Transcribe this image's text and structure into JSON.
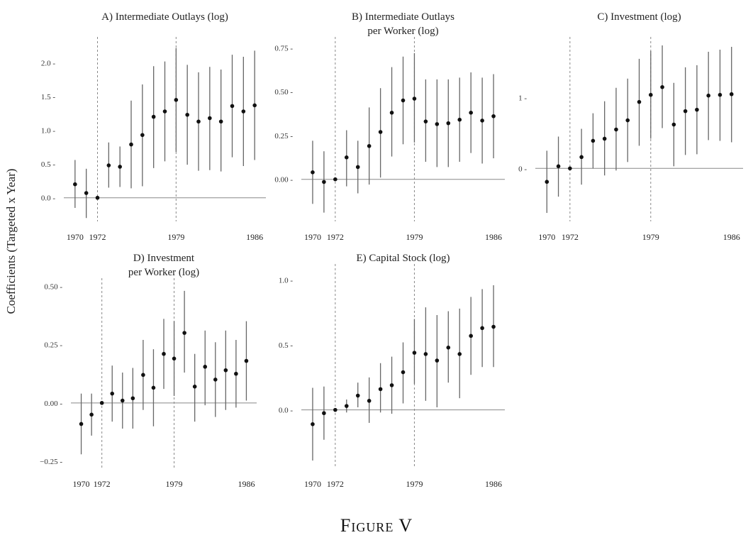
{
  "figure_caption": "Figure V",
  "y_axis_label": "Coefficients (Targeted x Year)",
  "colors": {
    "point": "#111111",
    "ci": "#666666",
    "ref_line": "#888888"
  },
  "chart_data": [
    {
      "type": "scatter",
      "title": "A) Intermediate Outlays (log)",
      "x_ticks": [
        1970,
        1972,
        1979,
        1986
      ],
      "y_ticks": [
        0.0,
        0.5,
        1.0,
        1.5,
        2.0
      ],
      "y_tick_labels": [
        "0.0",
        "0.5",
        "1.0",
        "1.5",
        "2.0"
      ],
      "xlim": [
        1969,
        1987
      ],
      "ylim": [
        -0.35,
        2.3
      ],
      "vlines": [
        1972,
        1979
      ],
      "x": [
        1970,
        1971,
        1972,
        1973,
        1974,
        1975,
        1976,
        1977,
        1978,
        1979,
        1980,
        1981,
        1982,
        1983,
        1984,
        1985,
        1986
      ],
      "estimate": [
        0.2,
        0.07,
        0.0,
        0.48,
        0.46,
        0.79,
        0.93,
        1.2,
        1.28,
        1.45,
        1.23,
        1.13,
        1.18,
        1.13,
        1.36,
        1.28,
        1.37
      ],
      "ci_low": [
        -0.15,
        -0.3,
        0.0,
        0.15,
        0.16,
        0.14,
        0.17,
        0.44,
        0.54,
        0.68,
        0.49,
        0.4,
        0.41,
        0.39,
        0.6,
        0.47,
        0.56
      ],
      "ci_high": [
        0.56,
        0.43,
        0.0,
        0.82,
        0.76,
        1.44,
        1.68,
        1.95,
        2.02,
        2.22,
        1.97,
        1.86,
        1.94,
        1.9,
        2.12,
        2.09,
        2.18
      ]
    },
    {
      "type": "scatter",
      "title": "B) Intermediate Outlays\nper Worker (log)",
      "x_ticks": [
        1970,
        1972,
        1979,
        1986
      ],
      "y_ticks": [
        0.0,
        0.25,
        0.5,
        0.75
      ],
      "y_tick_labels": [
        "0.00",
        "0.25",
        "0.50",
        "0.75"
      ],
      "xlim": [
        1969,
        1987
      ],
      "ylim": [
        -0.24,
        0.78
      ],
      "vlines": [
        1972,
        1979
      ],
      "x": [
        1970,
        1971,
        1972,
        1973,
        1974,
        1975,
        1976,
        1977,
        1978,
        1979,
        1980,
        1981,
        1982,
        1983,
        1984,
        1985,
        1986
      ],
      "estimate": [
        0.04,
        -0.015,
        0.0,
        0.125,
        0.07,
        0.19,
        0.27,
        0.38,
        0.45,
        0.46,
        0.33,
        0.315,
        0.32,
        0.34,
        0.38,
        0.335,
        0.36
      ],
      "ci_low": [
        -0.14,
        -0.19,
        0.0,
        -0.04,
        -0.08,
        -0.03,
        0.01,
        0.13,
        0.2,
        0.21,
        0.1,
        0.07,
        0.07,
        0.1,
        0.15,
        0.09,
        0.12
      ],
      "ci_high": [
        0.22,
        0.16,
        0.0,
        0.28,
        0.22,
        0.41,
        0.52,
        0.64,
        0.7,
        0.72,
        0.57,
        0.57,
        0.57,
        0.58,
        0.61,
        0.58,
        0.6
      ]
    },
    {
      "type": "scatter",
      "title": "C) Investment (log)",
      "x_ticks": [
        1970,
        1972,
        1979,
        1986
      ],
      "y_ticks": [
        0,
        1
      ],
      "y_tick_labels": [
        "0",
        "1"
      ],
      "xlim": [
        1969,
        1987
      ],
      "ylim": [
        -0.75,
        1.78
      ],
      "vlines": [
        1972,
        1979
      ],
      "x": [
        1970,
        1971,
        1972,
        1973,
        1974,
        1975,
        1976,
        1977,
        1978,
        1979,
        1980,
        1981,
        1982,
        1983,
        1984,
        1985,
        1986
      ],
      "estimate": [
        -0.19,
        0.03,
        0.0,
        0.16,
        0.39,
        0.42,
        0.55,
        0.68,
        0.94,
        1.04,
        1.15,
        0.62,
        0.81,
        0.83,
        1.03,
        1.04,
        1.05
      ],
      "ci_low": [
        -0.63,
        -0.4,
        0.0,
        -0.23,
        0.0,
        -0.1,
        -0.03,
        0.09,
        0.32,
        0.42,
        0.57,
        0.03,
        0.19,
        0.2,
        0.4,
        0.39,
        0.37
      ],
      "ci_high": [
        0.25,
        0.45,
        0.0,
        0.56,
        0.78,
        0.95,
        1.14,
        1.27,
        1.55,
        1.66,
        1.74,
        1.21,
        1.43,
        1.46,
        1.65,
        1.68,
        1.72
      ]
    },
    {
      "type": "scatter",
      "title": "D) Investment\nper Worker (log)",
      "x_ticks": [
        1970,
        1972,
        1979,
        1986
      ],
      "y_ticks": [
        -0.25,
        0.0,
        0.25,
        0.5
      ],
      "y_tick_labels": [
        "−0.25",
        "0.00",
        "0.25",
        "0.50"
      ],
      "xlim": [
        1969,
        1987
      ],
      "ylim": [
        -0.28,
        0.51
      ],
      "vlines": [
        1972,
        1979
      ],
      "x": [
        1970,
        1971,
        1972,
        1973,
        1974,
        1975,
        1976,
        1977,
        1978,
        1979,
        1980,
        1981,
        1982,
        1983,
        1984,
        1985,
        1986
      ],
      "estimate": [
        -0.09,
        -0.05,
        0.0,
        0.04,
        0.01,
        0.02,
        0.12,
        0.065,
        0.21,
        0.19,
        0.3,
        0.07,
        0.155,
        0.1,
        0.14,
        0.125,
        0.18
      ],
      "ci_low": [
        -0.22,
        -0.14,
        0.0,
        -0.08,
        -0.11,
        -0.11,
        -0.03,
        -0.1,
        0.06,
        0.03,
        0.13,
        -0.08,
        -0.01,
        -0.06,
        -0.03,
        -0.02,
        0.01
      ],
      "ci_high": [
        0.04,
        0.04,
        0.0,
        0.16,
        0.13,
        0.15,
        0.27,
        0.23,
        0.36,
        0.35,
        0.48,
        0.21,
        0.31,
        0.26,
        0.31,
        0.27,
        0.35
      ]
    },
    {
      "type": "scatter",
      "title": "E) Capital Stock (log)",
      "x_ticks": [
        1970,
        1972,
        1979,
        1986
      ],
      "y_ticks": [
        0.0,
        0.5,
        1.0
      ],
      "y_tick_labels": [
        "0.0",
        "0.5",
        "1.0"
      ],
      "xlim": [
        1969,
        1987
      ],
      "ylim": [
        -0.45,
        1.08
      ],
      "vlines": [
        1972,
        1979
      ],
      "x": [
        1970,
        1971,
        1972,
        1973,
        1974,
        1975,
        1976,
        1977,
        1978,
        1979,
        1980,
        1981,
        1982,
        1983,
        1984,
        1985,
        1986
      ],
      "estimate": [
        -0.11,
        -0.025,
        0.0,
        0.03,
        0.11,
        0.07,
        0.16,
        0.19,
        0.29,
        0.44,
        0.43,
        0.38,
        0.48,
        0.43,
        0.57,
        0.63,
        0.64
      ],
      "ci_low": [
        -0.39,
        -0.23,
        0.0,
        -0.02,
        0.02,
        -0.1,
        -0.02,
        -0.03,
        0.05,
        0.2,
        0.07,
        0.02,
        0.21,
        0.09,
        0.27,
        0.33,
        0.33
      ],
      "ci_high": [
        0.17,
        0.18,
        0.0,
        0.08,
        0.21,
        0.25,
        0.36,
        0.41,
        0.52,
        0.7,
        0.79,
        0.73,
        0.76,
        0.78,
        0.87,
        0.93,
        0.96
      ]
    }
  ]
}
